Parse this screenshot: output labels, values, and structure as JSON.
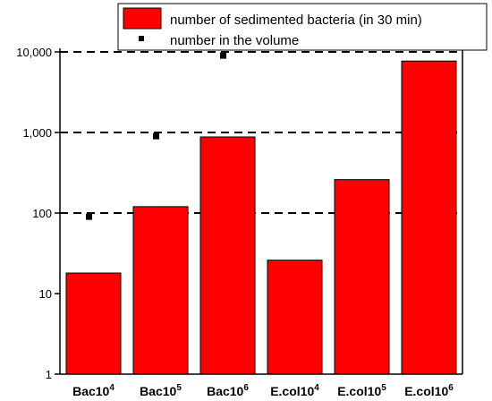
{
  "chart_data": {
    "type": "bar",
    "y_scale": "log",
    "ylim": [
      1,
      10000
    ],
    "y_ticks": [
      {
        "value": 1,
        "label": "1"
      },
      {
        "value": 10,
        "label": "10"
      },
      {
        "value": 100,
        "label": "100"
      },
      {
        "value": 1000,
        "label": "1,000"
      },
      {
        "value": 10000,
        "label": "10,000"
      }
    ],
    "categories": [
      {
        "base": "Bac10",
        "sup": "4"
      },
      {
        "base": "Bac10",
        "sup": "5"
      },
      {
        "base": "Bac10",
        "sup": "6"
      },
      {
        "base": "E.col10",
        "sup": "4"
      },
      {
        "base": "E.col10",
        "sup": "5"
      },
      {
        "base": "E.col10",
        "sup": "6"
      }
    ],
    "series": [
      {
        "name": "number of sedimented bacteria (in 30 min)",
        "type": "bar",
        "color": "#ff0000",
        "values": [
          18,
          120,
          880,
          26,
          260,
          7700
        ]
      },
      {
        "name": "number in the volume",
        "type": "marker",
        "color": "#000000",
        "values": [
          90,
          900,
          9000,
          null,
          null,
          null
        ]
      }
    ],
    "reference_lines": [
      100,
      1000,
      10000
    ],
    "legend_position": "top-right"
  }
}
